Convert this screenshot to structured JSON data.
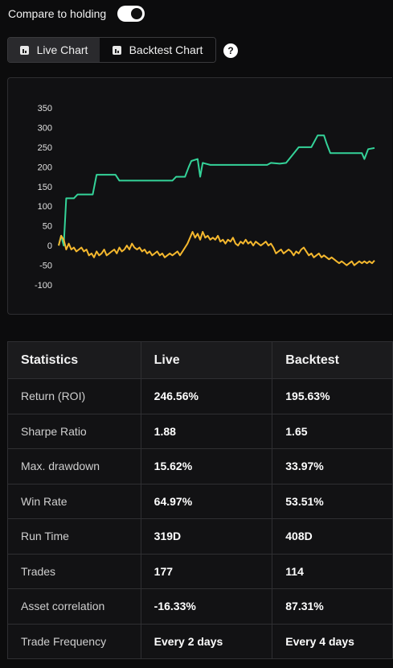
{
  "toggle": {
    "label": "Compare to holding",
    "on": true
  },
  "tabs": [
    {
      "label": "Live Chart",
      "icon": "bar-chart-icon",
      "active": true
    },
    {
      "label": "Backtest Chart",
      "icon": "bar-chart-icon",
      "active": false
    }
  ],
  "help_icon": "?",
  "colors": {
    "strategy": "#34d399",
    "holding": "#f5b82e",
    "background": "#0c0c0d"
  },
  "chart_data": {
    "type": "line",
    "ylim": [
      -100,
      350
    ],
    "yticks": [
      "350",
      "300",
      "250",
      "200",
      "150",
      "100",
      "50",
      "0",
      "-50",
      "-100"
    ],
    "grid": false,
    "series": [
      {
        "color": "#34d399",
        "points": [
          [
            0,
            0
          ],
          [
            2,
            25
          ],
          [
            4,
            0
          ],
          [
            6,
            120
          ],
          [
            12,
            120
          ],
          [
            15,
            130
          ],
          [
            27,
            130
          ],
          [
            30,
            180
          ],
          [
            45,
            180
          ],
          [
            48,
            165
          ],
          [
            90,
            165
          ],
          [
            93,
            175
          ],
          [
            100,
            175
          ],
          [
            103,
            200
          ],
          [
            105,
            215
          ],
          [
            110,
            220
          ],
          [
            112,
            175
          ],
          [
            114,
            210
          ],
          [
            120,
            205
          ],
          [
            165,
            205
          ],
          [
            168,
            210
          ],
          [
            175,
            208
          ],
          [
            180,
            210
          ],
          [
            185,
            230
          ],
          [
            190,
            250
          ],
          [
            200,
            250
          ],
          [
            205,
            280
          ],
          [
            210,
            280
          ],
          [
            212,
            260
          ],
          [
            215,
            235
          ],
          [
            240,
            235
          ],
          [
            242,
            220
          ],
          [
            245,
            245
          ],
          [
            250,
            248
          ]
        ]
      },
      {
        "color": "#f5b82e",
        "points": [
          [
            0,
            0
          ],
          [
            2,
            25
          ],
          [
            4,
            15
          ],
          [
            6,
            -10
          ],
          [
            8,
            5
          ],
          [
            10,
            -10
          ],
          [
            12,
            -5
          ],
          [
            14,
            -15
          ],
          [
            16,
            -10
          ],
          [
            18,
            -5
          ],
          [
            20,
            -15
          ],
          [
            22,
            -10
          ],
          [
            24,
            -25
          ],
          [
            26,
            -20
          ],
          [
            28,
            -30
          ],
          [
            30,
            -15
          ],
          [
            32,
            -25
          ],
          [
            34,
            -20
          ],
          [
            36,
            -10
          ],
          [
            38,
            -25
          ],
          [
            40,
            -20
          ],
          [
            42,
            -15
          ],
          [
            44,
            -10
          ],
          [
            46,
            -20
          ],
          [
            48,
            -5
          ],
          [
            50,
            -15
          ],
          [
            52,
            -10
          ],
          [
            54,
            0
          ],
          [
            56,
            -10
          ],
          [
            58,
            5
          ],
          [
            60,
            -5
          ],
          [
            62,
            -10
          ],
          [
            64,
            -5
          ],
          [
            66,
            -15
          ],
          [
            68,
            -10
          ],
          [
            70,
            -20
          ],
          [
            72,
            -15
          ],
          [
            74,
            -25
          ],
          [
            76,
            -20
          ],
          [
            78,
            -15
          ],
          [
            80,
            -25
          ],
          [
            82,
            -20
          ],
          [
            84,
            -30
          ],
          [
            86,
            -25
          ],
          [
            88,
            -20
          ],
          [
            90,
            -25
          ],
          [
            92,
            -20
          ],
          [
            94,
            -15
          ],
          [
            96,
            -25
          ],
          [
            98,
            -15
          ],
          [
            100,
            -5
          ],
          [
            102,
            5
          ],
          [
            104,
            20
          ],
          [
            106,
            35
          ],
          [
            108,
            20
          ],
          [
            110,
            30
          ],
          [
            112,
            15
          ],
          [
            114,
            35
          ],
          [
            116,
            20
          ],
          [
            118,
            25
          ],
          [
            120,
            15
          ],
          [
            122,
            20
          ],
          [
            124,
            15
          ],
          [
            126,
            25
          ],
          [
            128,
            10
          ],
          [
            130,
            15
          ],
          [
            132,
            5
          ],
          [
            134,
            15
          ],
          [
            136,
            10
          ],
          [
            138,
            20
          ],
          [
            140,
            5
          ],
          [
            142,
            0
          ],
          [
            144,
            10
          ],
          [
            146,
            5
          ],
          [
            148,
            15
          ],
          [
            150,
            5
          ],
          [
            152,
            10
          ],
          [
            154,
            0
          ],
          [
            156,
            10
          ],
          [
            158,
            5
          ],
          [
            160,
            0
          ],
          [
            162,
            5
          ],
          [
            164,
            10
          ],
          [
            166,
            0
          ],
          [
            168,
            5
          ],
          [
            170,
            -5
          ],
          [
            172,
            -20
          ],
          [
            174,
            -15
          ],
          [
            176,
            -10
          ],
          [
            178,
            -20
          ],
          [
            180,
            -15
          ],
          [
            182,
            -10
          ],
          [
            184,
            -15
          ],
          [
            186,
            -25
          ],
          [
            188,
            -15
          ],
          [
            190,
            -20
          ],
          [
            192,
            -10
          ],
          [
            194,
            -5
          ],
          [
            196,
            -15
          ],
          [
            198,
            -25
          ],
          [
            200,
            -20
          ],
          [
            202,
            -30
          ],
          [
            204,
            -25
          ],
          [
            206,
            -20
          ],
          [
            208,
            -30
          ],
          [
            210,
            -25
          ],
          [
            212,
            -30
          ],
          [
            214,
            -35
          ],
          [
            216,
            -30
          ],
          [
            218,
            -35
          ],
          [
            220,
            -40
          ],
          [
            222,
            -45
          ],
          [
            224,
            -40
          ],
          [
            226,
            -45
          ],
          [
            228,
            -50
          ],
          [
            230,
            -45
          ],
          [
            232,
            -40
          ],
          [
            234,
            -50
          ],
          [
            236,
            -45
          ],
          [
            238,
            -40
          ],
          [
            240,
            -45
          ],
          [
            242,
            -40
          ],
          [
            244,
            -45
          ],
          [
            246,
            -40
          ],
          [
            248,
            -45
          ],
          [
            250,
            -38
          ]
        ]
      }
    ]
  },
  "statistics": {
    "headers": [
      "Statistics",
      "Live",
      "Backtest"
    ],
    "rows": [
      [
        "Return (ROI)",
        "246.56%",
        "195.63%"
      ],
      [
        "Sharpe Ratio",
        "1.88",
        "1.65"
      ],
      [
        "Max. drawdown",
        "15.62%",
        "33.97%"
      ],
      [
        "Win Rate",
        "64.97%",
        "53.51%"
      ],
      [
        "Run Time",
        "319D",
        "408D"
      ],
      [
        "Trades",
        "177",
        "114"
      ],
      [
        "Asset correlation",
        "-16.33%",
        "87.31%"
      ],
      [
        "Trade Frequency",
        "Every 2 days",
        "Every 4 days"
      ]
    ]
  }
}
